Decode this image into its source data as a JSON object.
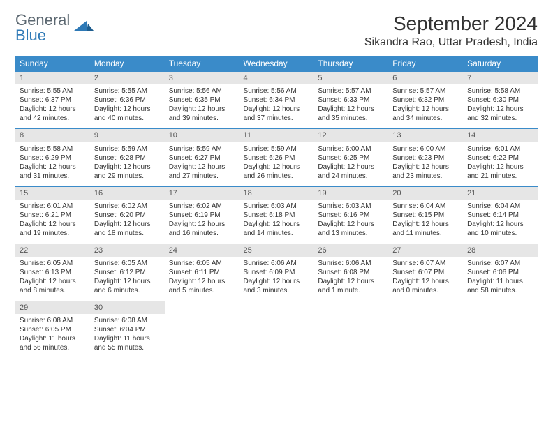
{
  "logo": {
    "word1": "General",
    "word2": "Blue",
    "color1": "#5b6770",
    "color2": "#2e79b6"
  },
  "title": "September 2024",
  "location": "Sikandra Rao, Uttar Pradesh, India",
  "day_headers": [
    "Sunday",
    "Monday",
    "Tuesday",
    "Wednesday",
    "Thursday",
    "Friday",
    "Saturday"
  ],
  "colors": {
    "header_bg": "#3a8bc9",
    "header_text": "#ffffff",
    "daynum_bg": "#e6e6e6",
    "border": "#3a8bc9",
    "text": "#333333"
  },
  "weeks": [
    [
      {
        "num": "1",
        "sunrise": "5:55 AM",
        "sunset": "6:37 PM",
        "daylight": "12 hours and 42 minutes."
      },
      {
        "num": "2",
        "sunrise": "5:55 AM",
        "sunset": "6:36 PM",
        "daylight": "12 hours and 40 minutes."
      },
      {
        "num": "3",
        "sunrise": "5:56 AM",
        "sunset": "6:35 PM",
        "daylight": "12 hours and 39 minutes."
      },
      {
        "num": "4",
        "sunrise": "5:56 AM",
        "sunset": "6:34 PM",
        "daylight": "12 hours and 37 minutes."
      },
      {
        "num": "5",
        "sunrise": "5:57 AM",
        "sunset": "6:33 PM",
        "daylight": "12 hours and 35 minutes."
      },
      {
        "num": "6",
        "sunrise": "5:57 AM",
        "sunset": "6:32 PM",
        "daylight": "12 hours and 34 minutes."
      },
      {
        "num": "7",
        "sunrise": "5:58 AM",
        "sunset": "6:30 PM",
        "daylight": "12 hours and 32 minutes."
      }
    ],
    [
      {
        "num": "8",
        "sunrise": "5:58 AM",
        "sunset": "6:29 PM",
        "daylight": "12 hours and 31 minutes."
      },
      {
        "num": "9",
        "sunrise": "5:59 AM",
        "sunset": "6:28 PM",
        "daylight": "12 hours and 29 minutes."
      },
      {
        "num": "10",
        "sunrise": "5:59 AM",
        "sunset": "6:27 PM",
        "daylight": "12 hours and 27 minutes."
      },
      {
        "num": "11",
        "sunrise": "5:59 AM",
        "sunset": "6:26 PM",
        "daylight": "12 hours and 26 minutes."
      },
      {
        "num": "12",
        "sunrise": "6:00 AM",
        "sunset": "6:25 PM",
        "daylight": "12 hours and 24 minutes."
      },
      {
        "num": "13",
        "sunrise": "6:00 AM",
        "sunset": "6:23 PM",
        "daylight": "12 hours and 23 minutes."
      },
      {
        "num": "14",
        "sunrise": "6:01 AM",
        "sunset": "6:22 PM",
        "daylight": "12 hours and 21 minutes."
      }
    ],
    [
      {
        "num": "15",
        "sunrise": "6:01 AM",
        "sunset": "6:21 PM",
        "daylight": "12 hours and 19 minutes."
      },
      {
        "num": "16",
        "sunrise": "6:02 AM",
        "sunset": "6:20 PM",
        "daylight": "12 hours and 18 minutes."
      },
      {
        "num": "17",
        "sunrise": "6:02 AM",
        "sunset": "6:19 PM",
        "daylight": "12 hours and 16 minutes."
      },
      {
        "num": "18",
        "sunrise": "6:03 AM",
        "sunset": "6:18 PM",
        "daylight": "12 hours and 14 minutes."
      },
      {
        "num": "19",
        "sunrise": "6:03 AM",
        "sunset": "6:16 PM",
        "daylight": "12 hours and 13 minutes."
      },
      {
        "num": "20",
        "sunrise": "6:04 AM",
        "sunset": "6:15 PM",
        "daylight": "12 hours and 11 minutes."
      },
      {
        "num": "21",
        "sunrise": "6:04 AM",
        "sunset": "6:14 PM",
        "daylight": "12 hours and 10 minutes."
      }
    ],
    [
      {
        "num": "22",
        "sunrise": "6:05 AM",
        "sunset": "6:13 PM",
        "daylight": "12 hours and 8 minutes."
      },
      {
        "num": "23",
        "sunrise": "6:05 AM",
        "sunset": "6:12 PM",
        "daylight": "12 hours and 6 minutes."
      },
      {
        "num": "24",
        "sunrise": "6:05 AM",
        "sunset": "6:11 PM",
        "daylight": "12 hours and 5 minutes."
      },
      {
        "num": "25",
        "sunrise": "6:06 AM",
        "sunset": "6:09 PM",
        "daylight": "12 hours and 3 minutes."
      },
      {
        "num": "26",
        "sunrise": "6:06 AM",
        "sunset": "6:08 PM",
        "daylight": "12 hours and 1 minute."
      },
      {
        "num": "27",
        "sunrise": "6:07 AM",
        "sunset": "6:07 PM",
        "daylight": "12 hours and 0 minutes."
      },
      {
        "num": "28",
        "sunrise": "6:07 AM",
        "sunset": "6:06 PM",
        "daylight": "11 hours and 58 minutes."
      }
    ],
    [
      {
        "num": "29",
        "sunrise": "6:08 AM",
        "sunset": "6:05 PM",
        "daylight": "11 hours and 56 minutes."
      },
      {
        "num": "30",
        "sunrise": "6:08 AM",
        "sunset": "6:04 PM",
        "daylight": "11 hours and 55 minutes."
      },
      null,
      null,
      null,
      null,
      null
    ]
  ],
  "labels": {
    "sunrise": "Sunrise:",
    "sunset": "Sunset:",
    "daylight": "Daylight:"
  }
}
